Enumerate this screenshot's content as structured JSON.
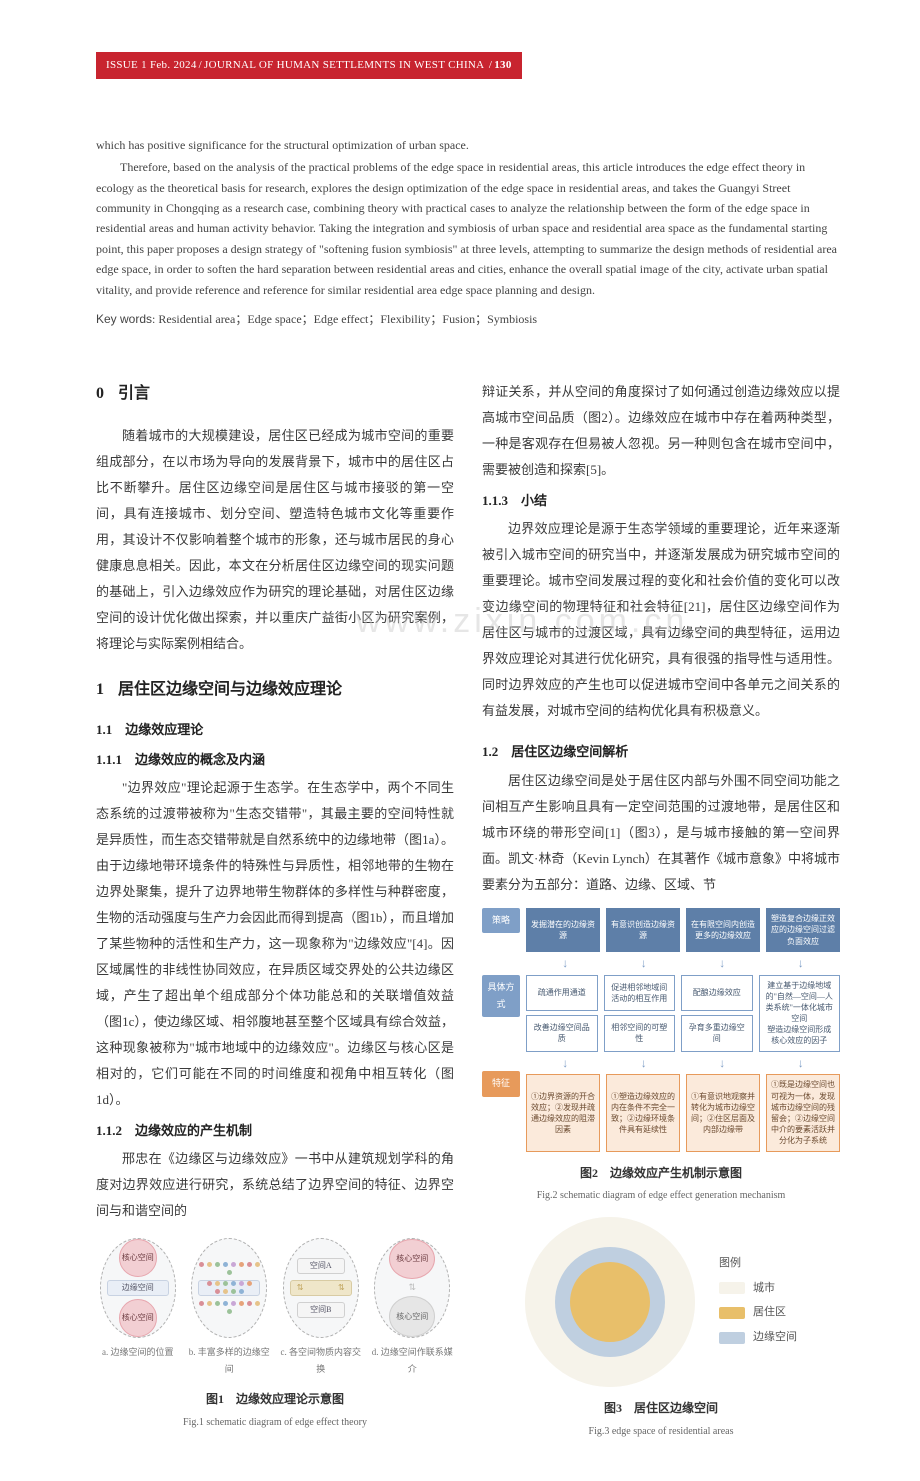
{
  "header": {
    "issue": "ISSUE 1 Feb. 2024",
    "journal": "JOURNAL OF HUMAN SETTLEMNTS IN WEST CHINA",
    "page": "130"
  },
  "abstract": {
    "p1": "which has positive significance for the structural optimization of urban space.",
    "p2": "Therefore, based on the analysis of the practical problems of the edge space in residential areas, this article introduces the edge effect theory in ecology as the theoretical basis for research, explores the design optimization of the edge space in residential areas, and takes the Guangyi Street community in Chongqing as a research case, combining theory with practical cases to analyze the relationship between the form of the edge space in residential areas and human activity behavior. Taking the integration and symbiosis of urban space and residential area space as the fundamental starting point, this paper proposes a design strategy of \"softening fusion symbiosis\" at three levels, attempting to summarize the design methods of residential area edge space, in order to soften the hard separation between residential areas and cities, enhance the overall spatial image of the city, activate urban spatial vitality, and provide reference and reference for similar residential area edge space planning and design."
  },
  "keywords": {
    "label": "Key words",
    "text": "Residential area；Edge space；Edge effect；Flexibility；Fusion；Symbiosis"
  },
  "watermark": "www.zixin.com.cn",
  "left": {
    "s0_num": "0",
    "s0_title": "引言",
    "s0_p1": "随着城市的大规模建设，居住区已经成为城市空间的重要组成部分，在以市场为导向的发展背景下，城市中的居住区占比不断攀升。居住区边缘空间是居住区与城市接驳的第一空间，具有连接城市、划分空间、塑造特色城市文化等重要作用，其设计不仅影响着整个城市的形象，还与城市居民的身心健康息息相关。因此，本文在分析居住区边缘空间的现实问题的基础上，引入边缘效应作为研究的理论基础，对居住区边缘空间的设计优化做出探索，并以重庆广益街小区为研究案例，将理论与实际案例相结合。",
    "s1_num": "1",
    "s1_title": "居住区边缘空间与边缘效应理论",
    "s11_num": "1.1",
    "s11_title": "边缘效应理论",
    "s111_num": "1.1.1",
    "s111_title": "边缘效应的概念及内涵",
    "s111_p": "\"边界效应\"理论起源于生态学。在生态学中，两个不同生态系统的过渡带被称为\"生态交错带\"，其最主要的空间特性就是异质性，而生态交错带就是自然系统中的边缘地带（图1a）。由于边缘地带环境条件的特殊性与异质性，相邻地带的生物在边界处聚集，提升了边界地带生物群体的多样性与种群密度，生物的活动强度与生产力会因此而得到提高（图1b），而且增加了某些物种的活性和生产力，这一现象称为\"边缘效应\"[4]。因区域属性的非线性协同效应，在异质区域交界处的公共边缘区域，产生了超出单个组成部分个体功能总和的关联增值效益（图1c），使边缘区域、相邻腹地甚至整个区域具有综合效益，这种现象被称为\"城市地域中的边缘效应\"。边缘区与核心区是相对的，它们可能在不同的时间维度和视角中相互转化（图1d）。",
    "s112_num": "1.1.2",
    "s112_title": "边缘效应的产生机制",
    "s112_p": "邢忠在《边缘区与边缘效应》一书中从建筑规划学科的角度对边界效应进行研究，系统总结了边界空间的特征、边界空间与和谐空间的"
  },
  "right": {
    "cont_p": "辩证关系，并从空间的角度探讨了如何通过创造边缘效应以提高城市空间品质（图2）。边缘效应在城市中存在着两种类型，一种是客观存在但易被人忽视。另一种则包含在城市空间中，需要被创造和探索[5]。",
    "s113_num": "1.1.3",
    "s113_title": "小结",
    "s113_p": "边界效应理论是源于生态学领域的重要理论，近年来逐渐被引入城市空间的研究当中，并逐渐发展成为研究城市空间的重要理论。城市空间发展过程的变化和社会价值的变化可以改变边缘空间的物理特征和社会特征[21]，居住区边缘空间作为居住区与城市的过渡区域，具有边缘空间的典型特征，运用边界效应理论对其进行优化研究，具有很强的指导性与适用性。同时边界效应的产生也可以促进城市空间中各单元之间关系的有益发展，对城市空间的结构优化具有积极意义。",
    "s12_num": "1.2",
    "s12_title": "居住区边缘空间解析",
    "s12_p": "居住区边缘空间是处于居住区内部与外围不同空间功能之间相互产生影响且具有一定空间范围的过渡地带，是居住区和城市环绕的带形空间[1]（图3），是与城市接触的第一空间界面。凯文·林奇（Kevin Lynch）在其著作《城市意象》中将城市要素分为五部分：道路、边缘、区域、节"
  },
  "fig1": {
    "core_label": "核心空间",
    "edge_label": "边缘空间",
    "spaceA": "空间A",
    "spaceB": "空间B",
    "sub_a": "a. 边缘空间的位置",
    "sub_b": "b. 丰富多样的边缘空间",
    "sub_c": "c. 各空间物质内容交换",
    "sub_d": "d. 边缘空间作联系媒介",
    "caption_cn": "图1　边缘效应理论示意图",
    "caption_en": "Fig.1 schematic diagram of edge effect theory",
    "colors": {
      "oval_border": "#b0b0b0",
      "oval_fill": "#f6f7f8",
      "core_fill": "#f2cfd3",
      "core_border": "#e7a6ae",
      "edge_fill": "#e9eef6",
      "edge_border": "#c8d2e2"
    },
    "dot_colors": [
      "#d98f97",
      "#e6c38a",
      "#9cc29a",
      "#8fb3d6",
      "#c9a7d6",
      "#e6a37a"
    ]
  },
  "fig2": {
    "tags": {
      "strategy": "策略",
      "method": "具体方式",
      "feature": "特征"
    },
    "row1": [
      "发掘潜在的边缘资源",
      "有意识创造边缘资源",
      "在有限空间内创造更多的边缘效应",
      "塑造复合边缘正效应的边缘空间过滤负面效应"
    ],
    "row2a": [
      "疏通作用通道",
      "改善边缘空间品质"
    ],
    "row2b": [
      "促进相邻地域间活动的相互作用",
      "相邻空间的可塑性"
    ],
    "row2c": [
      "配酿边缘效应",
      "孕育多重边缘空间"
    ],
    "row2d": "建立基于边缘地域的\"自然—空间—人类系统\"一体化城市空间\n塑造边缘空间形成核心效应的因子",
    "row3": [
      "①边界资源的开合效应；②发现并疏通边缘效应的阻滞因素",
      "①塑造边缘效应的内在条件不完全一致；②边缘环境条件具有延续性",
      "①有意识地观察并转化为城市边缘空间；②住区层面及内部边缘带",
      "①既是边缘空间也可视为一体，发现城市边缘空间的残留会；②边缘空间中介的要素活跃并分化为子系统"
    ],
    "caption_cn": "图2　边缘效应产生机制示意图",
    "caption_en": "Fig.2 schematic diagram of edge effect generation mechanism",
    "colors": {
      "blue": "#7f9fc7",
      "blue_fill": "#eaf0f8",
      "blue_dark": "#5e7fa8",
      "orange": "#e79a5b",
      "orange_fill": "#fbeadb"
    }
  },
  "fig3": {
    "legend_title": "图例",
    "legend": [
      {
        "label": "城市",
        "color": "#f6f3ea"
      },
      {
        "label": "居住区",
        "color": "#e8bf6a"
      },
      {
        "label": "边缘空间",
        "color": "#bfcfe0"
      }
    ],
    "caption_cn": "图3　居住区边缘空间",
    "caption_en": "Fig.3 edge space of residential areas",
    "ring_outer_color": "#f6f3ea",
    "ring_mid_color": "#bfcfe0",
    "ring_inner_color": "#e8bf6a"
  }
}
